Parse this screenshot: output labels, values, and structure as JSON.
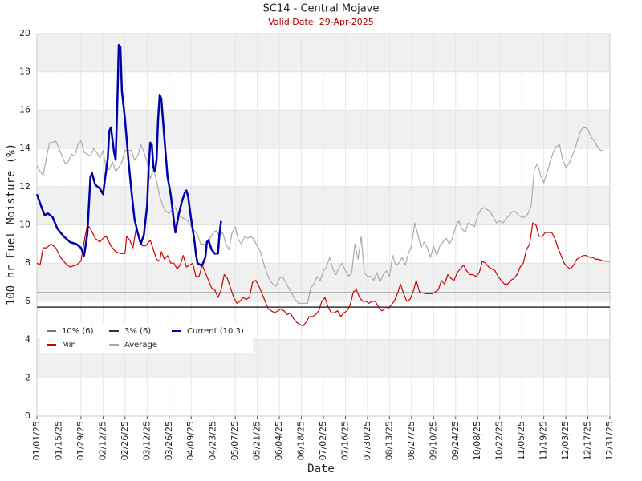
{
  "chart_data": {
    "type": "line",
    "title": "SC14 - Central Mojave",
    "subtitle": "Valid Date: 29-Apr-2025",
    "x_label": "Date",
    "y_label": "100 hr Fuel Moisture (%)",
    "xlim": [
      0,
      364
    ],
    "xticks": [
      {
        "value": 0,
        "label": "01/01/25"
      },
      {
        "value": 14,
        "label": "01/15/25"
      },
      {
        "value": 28,
        "label": "01/29/25"
      },
      {
        "value": 42,
        "label": "02/12/25"
      },
      {
        "value": 56,
        "label": "02/26/25"
      },
      {
        "value": 70,
        "label": "03/12/25"
      },
      {
        "value": 84,
        "label": "03/26/25"
      },
      {
        "value": 98,
        "label": "04/09/25"
      },
      {
        "value": 112,
        "label": "04/23/25"
      },
      {
        "value": 126,
        "label": "05/07/25"
      },
      {
        "value": 140,
        "label": "05/21/25"
      },
      {
        "value": 154,
        "label": "06/04/25"
      },
      {
        "value": 168,
        "label": "06/18/25"
      },
      {
        "value": 182,
        "label": "07/02/25"
      },
      {
        "value": 196,
        "label": "07/16/25"
      },
      {
        "value": 210,
        "label": "07/30/25"
      },
      {
        "value": 224,
        "label": "08/13/25"
      },
      {
        "value": 238,
        "label": "08/27/25"
      },
      {
        "value": 252,
        "label": "09/10/25"
      },
      {
        "value": 266,
        "label": "09/24/25"
      },
      {
        "value": 280,
        "label": "10/08/25"
      },
      {
        "value": 294,
        "label": "10/22/25"
      },
      {
        "value": 308,
        "label": "11/05/25"
      },
      {
        "value": 322,
        "label": "11/19/25"
      },
      {
        "value": 336,
        "label": "12/03/25"
      },
      {
        "value": 350,
        "label": "12/17/25"
      },
      {
        "value": 364,
        "label": "12/31/25"
      }
    ],
    "ylim": [
      0,
      20
    ],
    "yticks": [
      0,
      2,
      4,
      6,
      8,
      10,
      12,
      14,
      16,
      18,
      20
    ],
    "grid": true,
    "series": [
      {
        "name": "10% (6)",
        "color": "#777777",
        "x": [
          0,
          364
        ],
        "values": [
          6.45,
          6.45
        ]
      },
      {
        "name": "3% (6)",
        "color": "#333333",
        "x": [
          0,
          364
        ],
        "values": [
          5.7,
          5.7
        ]
      },
      {
        "name": "Current (10.3)",
        "color": "#0000aa",
        "x": [
          0,
          3,
          5,
          7,
          10,
          13,
          17,
          21,
          25,
          28,
          30,
          32,
          34,
          35,
          37,
          40,
          42,
          45,
          46,
          47,
          49,
          50,
          51,
          52,
          53,
          54,
          56,
          58,
          60,
          62,
          64,
          66,
          68,
          70,
          71,
          72,
          73,
          74,
          75,
          76,
          77,
          78,
          79,
          81,
          83,
          85,
          87,
          88,
          90,
          92,
          94,
          95,
          96,
          98,
          100,
          101,
          102,
          104,
          105,
          107,
          108,
          109,
          111,
          113,
          115,
          116,
          117
        ],
        "values": [
          11.6,
          10.9,
          10.5,
          10.6,
          10.4,
          9.8,
          9.4,
          9.1,
          9.0,
          8.8,
          8.4,
          9.5,
          12.5,
          12.7,
          12.1,
          11.9,
          11.6,
          13.5,
          14.9,
          15.1,
          13.8,
          13.4,
          16,
          19.4,
          19.3,
          17,
          15.5,
          13.5,
          11.8,
          10.3,
          9.6,
          9.0,
          9.5,
          11,
          13,
          14.3,
          14.2,
          13,
          12.8,
          13.4,
          15.5,
          16.8,
          16.6,
          14.5,
          12.5,
          11.6,
          10.2,
          9.6,
          10.5,
          11.2,
          11.7,
          11.8,
          11.5,
          10.3,
          9.2,
          8.5,
          8.0,
          7.9,
          7.9,
          8.3,
          9.1,
          9.2,
          8.7,
          8.5,
          8.5,
          9.5,
          10.2
        ]
      },
      {
        "name": "Min",
        "color": "#cc0000",
        "x": [
          0,
          2,
          4,
          6,
          9,
          12,
          15,
          18,
          21,
          25,
          28,
          30,
          32,
          34,
          37,
          40,
          42,
          44,
          47,
          50,
          53,
          56,
          57,
          59,
          61,
          63,
          65,
          67,
          69,
          72,
          74,
          76,
          78,
          79,
          81,
          83,
          85,
          87,
          89,
          91,
          93,
          95,
          97,
          99,
          101,
          103,
          105,
          107,
          109,
          111,
          113,
          115,
          117,
          119,
          121,
          123,
          125,
          127,
          129,
          131,
          133,
          135,
          137,
          139,
          141,
          143,
          145,
          147,
          149,
          151,
          153,
          155,
          157,
          159,
          161,
          163,
          165,
          167,
          169,
          171,
          173,
          175,
          177,
          179,
          181,
          183,
          185,
          187,
          189,
          191,
          193,
          195,
          197,
          199,
          201,
          203,
          205,
          207,
          209,
          211,
          213,
          215,
          217,
          219,
          221,
          223,
          225,
          227,
          229,
          231,
          233,
          235,
          237,
          239,
          241,
          243,
          247,
          251,
          253,
          255,
          257,
          259,
          261,
          263,
          265,
          267,
          269,
          271,
          273,
          275,
          277,
          279,
          281,
          283,
          285,
          287,
          289,
          291,
          293,
          295,
          297,
          299,
          301,
          303,
          305,
          307,
          309,
          311,
          313,
          315,
          317,
          319,
          321,
          323,
          325,
          327,
          329,
          331,
          333,
          335,
          337,
          339,
          341,
          343,
          345,
          347,
          349,
          351,
          353,
          355,
          357,
          360,
          364
        ],
        "values": [
          8.0,
          7.9,
          8.8,
          8.8,
          9.0,
          8.8,
          8.3,
          8.0,
          7.8,
          7.9,
          8.1,
          9.1,
          10.0,
          9.8,
          9.3,
          9.1,
          9.3,
          9.4,
          8.9,
          8.6,
          8.5,
          8.5,
          9.4,
          9.2,
          8.8,
          9.8,
          9.4,
          8.9,
          8.9,
          9.2,
          8.7,
          8.2,
          8.1,
          8.6,
          8.2,
          8.4,
          8.0,
          8.0,
          7.7,
          7.9,
          8.4,
          7.8,
          7.9,
          8.0,
          7.3,
          7.3,
          7.9,
          7.5,
          7.1,
          6.7,
          6.6,
          6.2,
          6.6,
          7.4,
          7.2,
          6.7,
          6.2,
          5.9,
          6.0,
          6.2,
          6.1,
          6.2,
          7.0,
          7.1,
          6.8,
          6.4,
          6.0,
          5.6,
          5.5,
          5.4,
          5.5,
          5.6,
          5.5,
          5.3,
          5.4,
          5.1,
          4.9,
          4.8,
          4.7,
          4.9,
          5.2,
          5.2,
          5.3,
          5.5,
          6.0,
          6.2,
          5.7,
          5.4,
          5.4,
          5.5,
          5.2,
          5.4,
          5.5,
          5.8,
          6.5,
          6.6,
          6.2,
          6.0,
          6.0,
          5.9,
          6.0,
          6.0,
          5.7,
          5.5,
          5.6,
          5.6,
          5.8,
          6.0,
          6.4,
          6.9,
          6.4,
          6.0,
          6.1,
          6.5,
          7.1,
          6.5,
          6.4,
          6.4,
          6.5,
          6.6,
          7.1,
          6.9,
          7.4,
          7.2,
          7.1,
          7.5,
          7.7,
          7.9,
          7.6,
          7.4,
          7.4,
          7.3,
          7.5,
          8.1,
          8.0,
          7.8,
          7.7,
          7.6,
          7.3,
          7.1,
          6.9,
          6.9,
          7.1,
          7.2,
          7.4,
          7.8,
          8.0,
          8.7,
          9.0,
          10.1,
          10.0,
          9.4,
          9.4,
          9.6,
          9.6,
          9.6,
          9.3,
          8.8,
          8.4,
          8.0,
          7.8,
          7.7,
          7.9,
          8.2,
          8.3,
          8.4,
          8.4,
          8.3,
          8.3,
          8.2,
          8.2,
          8.1,
          8.1
        ]
      },
      {
        "name": "Average",
        "color": "#aaaaaa",
        "x": [
          0,
          2,
          4,
          6,
          8,
          10,
          12,
          14,
          16,
          18,
          20,
          22,
          24,
          26,
          28,
          30,
          32,
          34,
          36,
          38,
          40,
          42,
          44,
          46,
          48,
          50,
          52,
          54,
          56,
          58,
          60,
          62,
          64,
          66,
          68,
          70,
          72,
          74,
          76,
          78,
          80,
          82,
          84,
          86,
          88,
          90,
          92,
          94,
          96,
          98,
          100,
          102,
          104,
          106,
          108,
          110,
          112,
          114,
          116,
          118,
          120,
          122,
          124,
          126,
          128,
          130,
          132,
          134,
          136,
          138,
          140,
          142,
          144,
          146,
          148,
          150,
          152,
          154,
          156,
          158,
          160,
          162,
          164,
          166,
          168,
          170,
          172,
          174,
          176,
          178,
          180,
          182,
          184,
          186,
          188,
          190,
          192,
          194,
          196,
          198,
          200,
          202,
          204,
          206,
          208,
          210,
          212,
          214,
          216,
          218,
          220,
          222,
          224,
          226,
          228,
          230,
          232,
          234,
          236,
          238,
          240,
          242,
          244,
          246,
          248,
          250,
          252,
          254,
          256,
          258,
          260,
          262,
          264,
          266,
          268,
          270,
          272,
          274,
          276,
          278,
          280,
          282,
          284,
          286,
          288,
          290,
          292,
          294,
          296,
          298,
          300,
          302,
          304,
          306,
          308,
          310,
          312,
          314,
          316,
          318,
          320,
          322,
          324,
          326,
          328,
          330,
          332,
          334,
          336,
          338,
          340,
          342,
          344,
          346,
          348,
          350,
          352,
          354,
          356,
          358,
          360
        ],
        "values": [
          13.1,
          12.8,
          12.6,
          13.5,
          14.3,
          14.3,
          14.4,
          14.0,
          13.6,
          13.2,
          13.3,
          13.7,
          13.6,
          14.2,
          14.4,
          13.8,
          13.7,
          13.6,
          14.0,
          13.8,
          13.5,
          13.9,
          12.9,
          12.9,
          13.3,
          12.8,
          13.0,
          13.3,
          13.9,
          13.9,
          13.9,
          13.4,
          13.6,
          14.2,
          13.8,
          13.3,
          12.4,
          12.9,
          12.3,
          11.5,
          11.0,
          10.7,
          10.6,
          10.8,
          10.9,
          10.5,
          10.4,
          10.3,
          10.2,
          9.9,
          9.7,
          9.5,
          9.0,
          9.0,
          8.9,
          9.3,
          9.6,
          9.7,
          9.4,
          9.6,
          9.0,
          8.7,
          9.6,
          9.9,
          9.2,
          9.0,
          9.4,
          9.3,
          9.4,
          9.2,
          8.9,
          8.6,
          8.0,
          7.5,
          7.1,
          6.9,
          6.8,
          7.2,
          7.3,
          7.0,
          6.7,
          6.4,
          6.1,
          5.9,
          5.9,
          5.9,
          5.9,
          6.7,
          6.9,
          7.3,
          7.1,
          7.6,
          7.8,
          8.3,
          7.7,
          7.4,
          7.8,
          8.0,
          7.6,
          7.3,
          7.5,
          9.0,
          8.2,
          9.4,
          7.5,
          7.3,
          7.3,
          7.1,
          7.5,
          7.0,
          7.4,
          7.6,
          7.3,
          8.4,
          7.9,
          8.0,
          8.3,
          7.9,
          8.5,
          8.9,
          10.1,
          9.5,
          8.8,
          9.1,
          8.8,
          8.3,
          8.9,
          8.4,
          8.9,
          9.1,
          9.3,
          9.0,
          9.3,
          9.9,
          10.2,
          9.8,
          9.6,
          10.1,
          10.0,
          9.9,
          10.5,
          10.8,
          10.9,
          10.8,
          10.7,
          10.4,
          10.1,
          10.2,
          10.1,
          10.3,
          10.5,
          10.7,
          10.7,
          10.5,
          10.4,
          10.4,
          10.6,
          11.0,
          12.9,
          13.2,
          12.6,
          12.2,
          12.7,
          13.3,
          13.8,
          14.1,
          14.2,
          13.4,
          13.0,
          13.2,
          13.6,
          14.0,
          14.6,
          15.0,
          15.1,
          15.0,
          14.6,
          14.4,
          14.1,
          13.9,
          13.9
        ]
      }
    ]
  }
}
